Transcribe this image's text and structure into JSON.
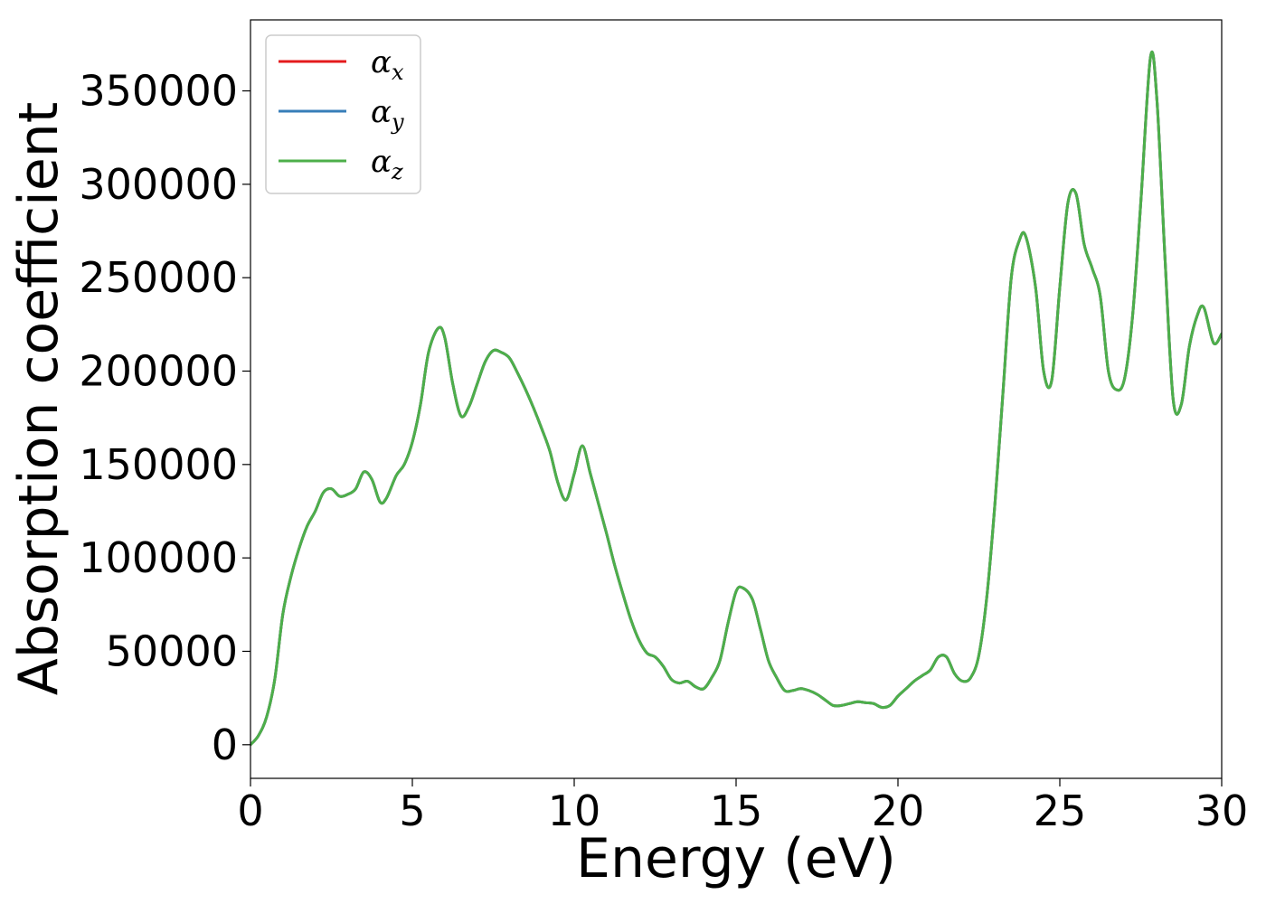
{
  "chart_data": {
    "type": "line",
    "title": "",
    "xlabel": "Energy (eV)",
    "ylabel": "Absorption coefficient",
    "xlim": [
      0,
      30
    ],
    "ylim": [
      -18000,
      388000
    ],
    "xticks": [
      0,
      5,
      10,
      15,
      20,
      25,
      30
    ],
    "xtick_labels": [
      "0",
      "5",
      "10",
      "15",
      "20",
      "25",
      "30"
    ],
    "yticks": [
      0,
      50000,
      100000,
      150000,
      200000,
      250000,
      300000,
      350000
    ],
    "ytick_labels": [
      "0",
      "50000",
      "100000",
      "150000",
      "200000",
      "250000",
      "300000",
      "350000"
    ],
    "grid": false,
    "legend_position": "top-left",
    "x": [
      0.0,
      0.25,
      0.5,
      0.75,
      1.0,
      1.25,
      1.5,
      1.75,
      2.0,
      2.25,
      2.5,
      2.75,
      3.0,
      3.25,
      3.5,
      3.75,
      4.0,
      4.2,
      4.5,
      4.75,
      5.0,
      5.25,
      5.5,
      5.8,
      6.0,
      6.25,
      6.5,
      6.75,
      7.0,
      7.25,
      7.5,
      7.75,
      8.0,
      8.25,
      8.5,
      8.75,
      9.0,
      9.25,
      9.5,
      9.75,
      10.0,
      10.25,
      10.5,
      10.75,
      11.0,
      11.25,
      11.5,
      11.75,
      12.0,
      12.25,
      12.5,
      12.75,
      13.0,
      13.25,
      13.5,
      13.75,
      14.0,
      14.25,
      14.5,
      14.75,
      15.0,
      15.2,
      15.5,
      15.75,
      16.0,
      16.25,
      16.5,
      16.75,
      17.0,
      17.25,
      17.5,
      17.75,
      18.0,
      18.25,
      18.5,
      18.75,
      19.0,
      19.25,
      19.5,
      19.75,
      20.0,
      20.25,
      20.5,
      20.75,
      21.0,
      21.25,
      21.5,
      21.75,
      22.0,
      22.25,
      22.5,
      22.75,
      23.0,
      23.25,
      23.5,
      23.75,
      23.95,
      24.25,
      24.5,
      24.75,
      25.0,
      25.25,
      25.5,
      25.75,
      26.0,
      26.25,
      26.5,
      26.75,
      27.0,
      27.25,
      27.5,
      27.8,
      28.0,
      28.25,
      28.5,
      28.75,
      29.0,
      29.25,
      29.45,
      29.75,
      30.0
    ],
    "series": [
      {
        "name": "α",
        "subscript": "x",
        "color": "#e41a1c",
        "values": [
          0,
          5000,
          15000,
          35000,
          70000,
          90000,
          105000,
          117000,
          125000,
          135000,
          137000,
          133000,
          134000,
          137000,
          146000,
          142000,
          130000,
          132000,
          144000,
          150000,
          162000,
          182000,
          210000,
          223000,
          218000,
          193000,
          176000,
          181000,
          193000,
          205000,
          211000,
          210000,
          207000,
          199000,
          190000,
          180000,
          169000,
          157000,
          140000,
          131000,
          145000,
          160000,
          145000,
          129000,
          113000,
          96000,
          81000,
          67000,
          56000,
          49000,
          47000,
          42000,
          35000,
          33000,
          34000,
          31000,
          30000,
          36000,
          45000,
          65000,
          82000,
          84000,
          78000,
          62000,
          45000,
          36000,
          29000,
          29000,
          30000,
          29000,
          27000,
          24000,
          21000,
          21000,
          22000,
          23000,
          22500,
          22000,
          20000,
          21000,
          26000,
          30000,
          34000,
          37000,
          40000,
          47000,
          47000,
          38000,
          34000,
          36000,
          48000,
          80000,
          130000,
          190000,
          250000,
          270000,
          272000,
          245000,
          200000,
          195000,
          245000,
          290000,
          295000,
          268000,
          255000,
          240000,
          200000,
          190000,
          196000,
          230000,
          290000,
          368000,
          345000,
          260000,
          185000,
          182000,
          213000,
          230000,
          234000,
          215000,
          220000
        ]
      },
      {
        "name": "α",
        "subscript": "y",
        "color": "#377eb8",
        "values": [
          0,
          5000,
          15000,
          35000,
          70000,
          90000,
          105000,
          117000,
          125000,
          135000,
          137000,
          133000,
          134000,
          137000,
          146000,
          142000,
          130000,
          132000,
          144000,
          150000,
          162000,
          182000,
          210000,
          223000,
          218000,
          193000,
          176000,
          181000,
          193000,
          205000,
          211000,
          210000,
          207000,
          199000,
          190000,
          180000,
          169000,
          157000,
          140000,
          131000,
          145000,
          160000,
          145000,
          129000,
          113000,
          96000,
          81000,
          67000,
          56000,
          49000,
          47000,
          42000,
          35000,
          33000,
          34000,
          31000,
          30000,
          36000,
          45000,
          65000,
          82000,
          84000,
          78000,
          62000,
          45000,
          36000,
          29000,
          29000,
          30000,
          29000,
          27000,
          24000,
          21000,
          21000,
          22000,
          23000,
          22500,
          22000,
          20000,
          21000,
          26000,
          30000,
          34000,
          37000,
          40000,
          47000,
          47000,
          38000,
          34000,
          36000,
          48000,
          80000,
          130000,
          190000,
          250000,
          270000,
          272000,
          245000,
          200000,
          195000,
          245000,
          290000,
          295000,
          268000,
          255000,
          240000,
          200000,
          190000,
          196000,
          230000,
          290000,
          368000,
          345000,
          260000,
          185000,
          182000,
          213000,
          230000,
          234000,
          215000,
          220000
        ]
      },
      {
        "name": "α",
        "subscript": "z",
        "color": "#4daf4a",
        "values": [
          0,
          5000,
          15000,
          35000,
          70000,
          90000,
          105000,
          117000,
          125000,
          135000,
          137000,
          133000,
          134000,
          137000,
          146000,
          142000,
          130000,
          132000,
          144000,
          150000,
          162000,
          182000,
          210000,
          223000,
          218000,
          193000,
          176000,
          181000,
          193000,
          205000,
          211000,
          210000,
          207000,
          199000,
          190000,
          180000,
          169000,
          157000,
          140000,
          131000,
          145000,
          160000,
          145000,
          129000,
          113000,
          96000,
          81000,
          67000,
          56000,
          49000,
          47000,
          42000,
          35000,
          33000,
          34000,
          31000,
          30000,
          36000,
          45000,
          65000,
          82000,
          84000,
          78000,
          62000,
          45000,
          36000,
          29000,
          29000,
          30000,
          29000,
          27000,
          24000,
          21000,
          21000,
          22000,
          23000,
          22500,
          22000,
          20000,
          21000,
          26000,
          30000,
          34000,
          37000,
          40000,
          47000,
          47000,
          38000,
          34000,
          36000,
          48000,
          80000,
          130000,
          190000,
          250000,
          270000,
          272000,
          245000,
          200000,
          195000,
          245000,
          290000,
          295000,
          268000,
          255000,
          240000,
          200000,
          190000,
          196000,
          230000,
          290000,
          368000,
          345000,
          260000,
          185000,
          182000,
          213000,
          230000,
          234000,
          215000,
          220000
        ]
      }
    ]
  }
}
